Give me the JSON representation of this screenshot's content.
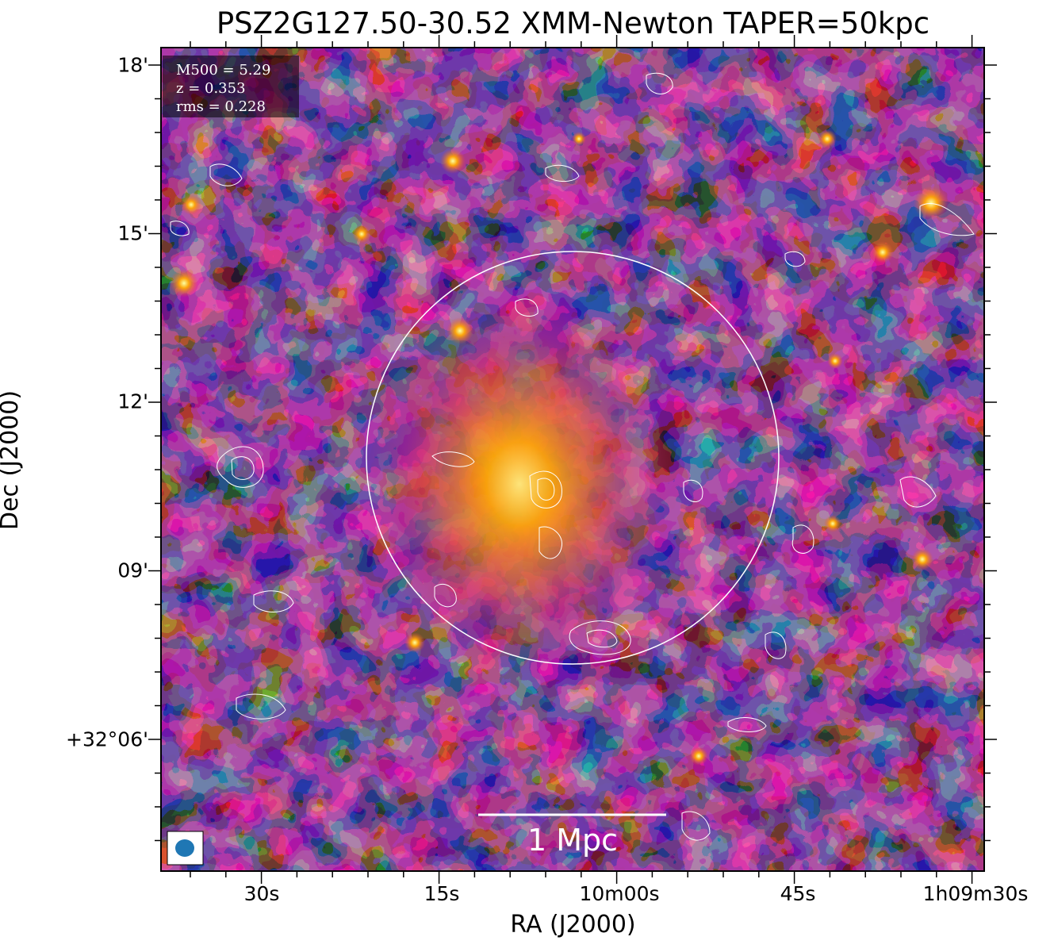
{
  "figure": {
    "title": "PSZ2G127.50-30.52 XMM-Newton TAPER=50kpc",
    "xlabel": "RA (J2000)",
    "ylabel": "Dec (J2000)",
    "x_ticks": [
      "30s",
      "15s",
      "10m00s",
      "45s",
      "1h09m30s"
    ],
    "y_ticks": [
      "18'",
      "15'",
      "12'",
      "09'",
      "+32°06'"
    ],
    "info": {
      "m500": "M500 = 5.29",
      "z": "z = 0.353",
      "rms": "rms = 0.228"
    },
    "scale_bar_label": "1 Mpc",
    "colors": {
      "background": "#050308",
      "accent_warm": "#fca50a",
      "accent_mid": "#b73779",
      "accent_dark": "#420a68",
      "contour": "#ffffff",
      "beam": "#1f77b4"
    }
  }
}
